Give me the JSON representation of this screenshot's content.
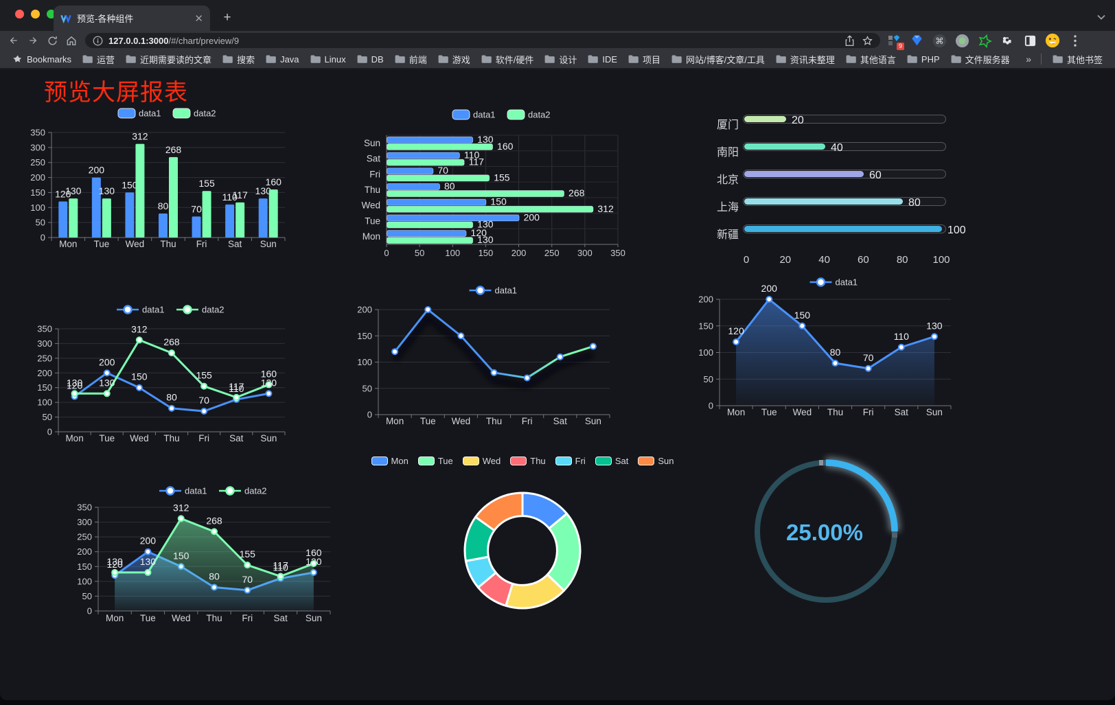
{
  "browser": {
    "tab": {
      "title": "预览-各种组件",
      "favicon": "v-logo-icon"
    },
    "url": {
      "protocol_icon": "info-icon",
      "host": "127.0.0.1:3000",
      "path": "/#/chart/preview/9"
    },
    "toolbar_icons": [
      "back",
      "forward",
      "reload",
      "home"
    ],
    "url_action_icons": [
      "share",
      "bookmark-star"
    ],
    "extension_icons": [
      "grid-diamond",
      "blue-gem",
      "command-circle",
      "green-dot-circle",
      "green-star",
      "puzzle",
      "sidebar",
      "emoji-avatar"
    ],
    "extension_badge": "9",
    "menu_icon": "kebab-menu",
    "bookmarks": {
      "root_label": "Bookmarks",
      "items": [
        "运营",
        "近期需要读的文章",
        "搜索",
        "Java",
        "Linux",
        "DB",
        "前端",
        "游戏",
        "软件/硬件",
        "设计",
        "IDE",
        "项目",
        "网站/博客/文章/工具",
        "资讯未整理",
        "其他语言",
        "PHP",
        "文件服务器"
      ],
      "overflow_chevron": "»",
      "other_label": "其他书签"
    }
  },
  "page": {
    "title": "预览大屏报表",
    "title_color": "#fd2b0e",
    "background": "#15161b"
  },
  "palette": {
    "series_blue": "#4992ff",
    "series_green": "#7cffb2"
  },
  "chart_data": [
    {
      "id": "grouped-bar",
      "type": "bar",
      "legend_position": "top",
      "show_value_labels": true,
      "categories": [
        "Mon",
        "Tue",
        "Wed",
        "Thu",
        "Fri",
        "Sat",
        "Sun"
      ],
      "series": [
        {
          "name": "data1",
          "color": "#4992ff",
          "values": [
            120,
            200,
            150,
            80,
            70,
            110,
            130
          ]
        },
        {
          "name": "data2",
          "color": "#7cffb2",
          "values": [
            130,
            130,
            312,
            268,
            155,
            117,
            160
          ]
        }
      ],
      "ylim": [
        0,
        350
      ],
      "ytick_step": 50,
      "grid": true
    },
    {
      "id": "horizontal-grouped-bar",
      "type": "bar",
      "orientation": "horizontal",
      "legend_position": "top",
      "show_value_labels": true,
      "categories": [
        "Sun",
        "Sat",
        "Fri",
        "Thu",
        "Wed",
        "Tue",
        "Mon"
      ],
      "series": [
        {
          "name": "data1",
          "color": "#4992ff",
          "values": [
            130,
            110,
            70,
            80,
            150,
            200,
            120
          ]
        },
        {
          "name": "data2",
          "color": "#7cffb2",
          "values": [
            160,
            117,
            155,
            268,
            312,
            130,
            130
          ]
        }
      ],
      "xlim": [
        0,
        350
      ],
      "xtick_step": 50,
      "grid": true
    },
    {
      "id": "city-progress-bars",
      "type": "bar",
      "orientation": "horizontal-progress",
      "categories": [
        "厦门",
        "南阳",
        "北京",
        "上海",
        "新疆"
      ],
      "values": [
        20,
        40,
        60,
        80,
        100
      ],
      "colors": [
        "#c4ebad",
        "#6be6c1",
        "#a0a7e6",
        "#96dee8",
        "#3fb1e3"
      ],
      "xticks": [
        0,
        20,
        40,
        60,
        80,
        100
      ],
      "xlim": [
        0,
        100
      ],
      "show_value_labels": true
    },
    {
      "id": "two-series-line",
      "type": "line",
      "legend_position": "top",
      "show_value_labels": true,
      "categories": [
        "Mon",
        "Tue",
        "Wed",
        "Thu",
        "Fri",
        "Sat",
        "Sun"
      ],
      "series": [
        {
          "name": "data1",
          "color": "#4992ff",
          "values": [
            120,
            200,
            150,
            80,
            70,
            110,
            130
          ]
        },
        {
          "name": "data2",
          "color": "#7cffb2",
          "values": [
            130,
            130,
            312,
            268,
            155,
            117,
            160
          ]
        }
      ],
      "ylim": [
        0,
        350
      ],
      "ytick_step": 50,
      "grid": true
    },
    {
      "id": "gradient-line",
      "type": "line",
      "legend_position": "top",
      "show_value_labels": false,
      "categories": [
        "Mon",
        "Tue",
        "Wed",
        "Thu",
        "Fri",
        "Sat",
        "Sun"
      ],
      "series": [
        {
          "name": "data1",
          "color": "#4992ff",
          "gradient_colors": [
            "#4992ff",
            "#7cffb2"
          ],
          "values": [
            120,
            200,
            150,
            80,
            70,
            110,
            130
          ]
        }
      ],
      "ylim": [
        0,
        200
      ],
      "ytick_step": 50,
      "line_shadow": true,
      "grid": true
    },
    {
      "id": "single-area-line",
      "type": "area",
      "legend_position": "top",
      "show_value_labels": true,
      "categories": [
        "Mon",
        "Tue",
        "Wed",
        "Thu",
        "Fri",
        "Sat",
        "Sun"
      ],
      "series": [
        {
          "name": "data1",
          "color": "#4992ff",
          "area": true,
          "values": [
            120,
            200,
            150,
            80,
            70,
            110,
            130
          ]
        }
      ],
      "ylim": [
        0,
        200
      ],
      "ytick_step": 50,
      "grid": true
    },
    {
      "id": "two-series-area-line",
      "type": "area",
      "legend_position": "top",
      "show_value_labels": true,
      "categories": [
        "Mon",
        "Tue",
        "Wed",
        "Thu",
        "Fri",
        "Sat",
        "Sun"
      ],
      "series": [
        {
          "name": "data1",
          "color": "#4992ff",
          "area": true,
          "values": [
            120,
            200,
            150,
            80,
            70,
            110,
            130
          ]
        },
        {
          "name": "data2",
          "color": "#7cffb2",
          "area": true,
          "values": [
            130,
            130,
            312,
            268,
            155,
            117,
            160
          ]
        }
      ],
      "ylim": [
        0,
        350
      ],
      "ytick_step": 50,
      "grid": true
    },
    {
      "id": "weekday-donut",
      "type": "pie",
      "inner_radius_ratio": 0.6,
      "legend_position": "top",
      "labels": [
        "Mon",
        "Tue",
        "Wed",
        "Thu",
        "Fri",
        "Sat",
        "Sun"
      ],
      "values": [
        120,
        200,
        150,
        80,
        70,
        110,
        130
      ],
      "colors": [
        "#4992ff",
        "#7cffb2",
        "#fddd60",
        "#ff6e76",
        "#58d9f9",
        "#05c091",
        "#ff8a45"
      ],
      "slice_border_color": "#ffffff"
    },
    {
      "id": "percent-gauge",
      "type": "gauge",
      "value": 25,
      "max": 100,
      "label": "25.00%",
      "color": "#3bb3ef",
      "track_color": "#2a4e5a",
      "text_color": "#55b7ee"
    }
  ]
}
